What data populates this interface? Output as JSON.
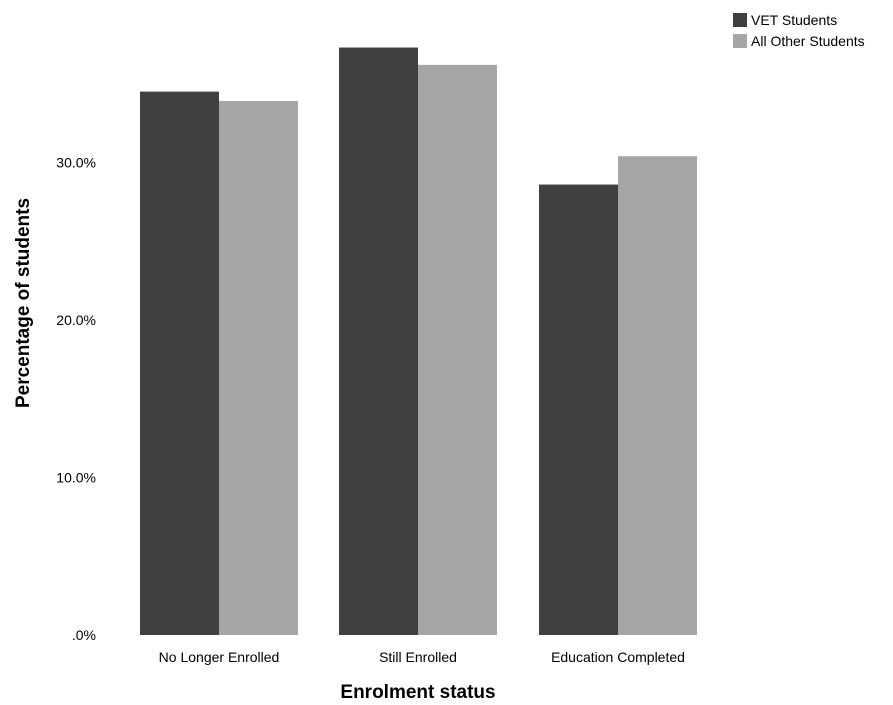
{
  "chart_data": {
    "type": "bar",
    "title": "",
    "xlabel": "Enrolment status",
    "ylabel": "Percentage of students",
    "categories": [
      "No Longer Enrolled",
      "Still Enrolled",
      "Education Completed"
    ],
    "series": [
      {
        "name": "VET Students",
        "color": "#404040",
        "values": [
          34.5,
          37.3,
          28.6
        ]
      },
      {
        "name": "All Other Students",
        "color": "#a6a6a6",
        "values": [
          33.9,
          36.2,
          30.4
        ]
      }
    ],
    "ylim": [
      0,
      40
    ],
    "yticks": [
      0,
      10,
      20,
      30
    ],
    "ytick_labels": [
      ".0%",
      "10.0%",
      "20.0%",
      "30.0%"
    ],
    "grid": false,
    "legend_position": "top-right"
  }
}
